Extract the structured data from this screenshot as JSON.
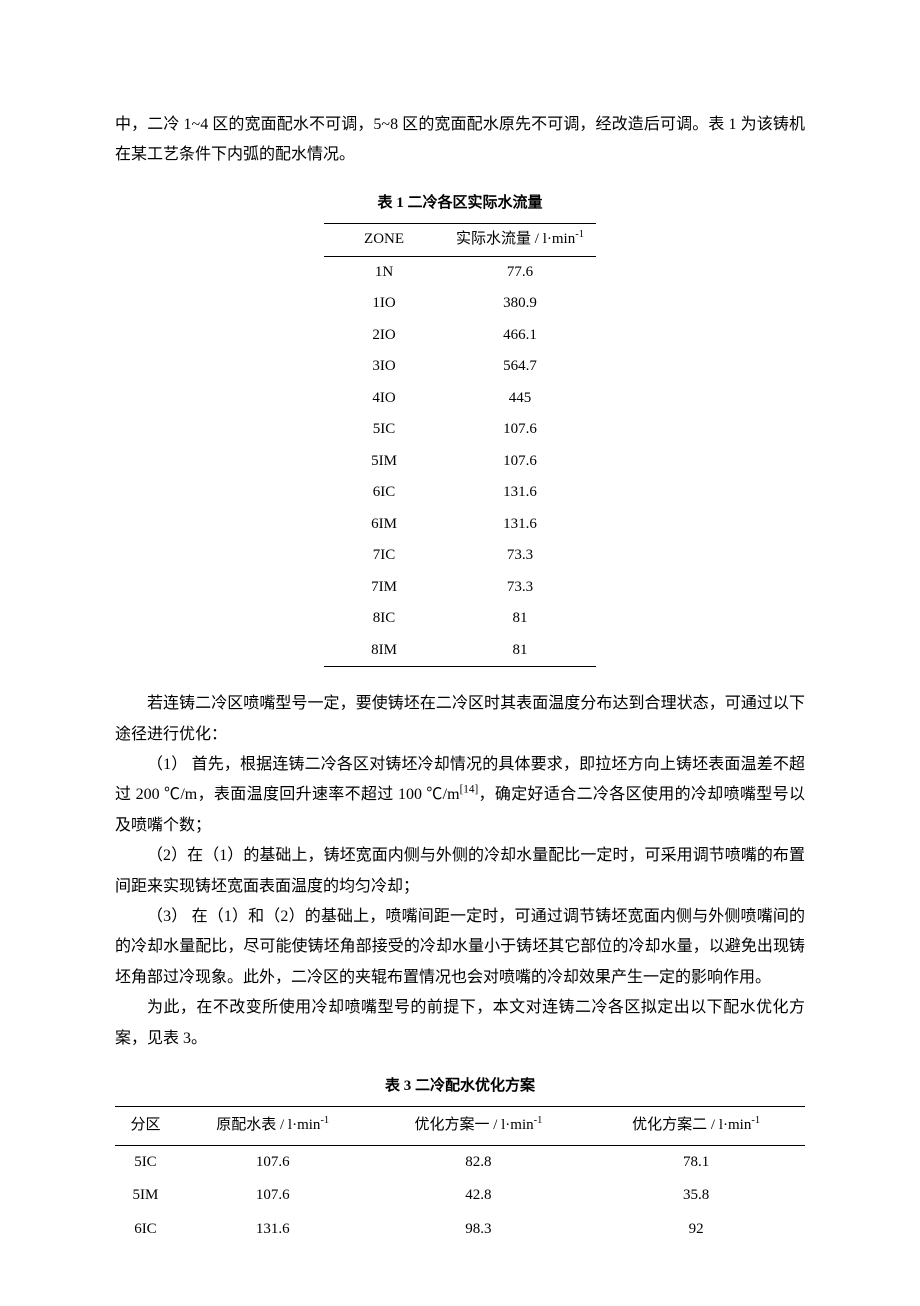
{
  "intro_paragraph": "中，二冷 1~4 区的宽面配水不可调，5~8 区的宽面配水原先不可调，经改造后可调。表 1 为该铸机在某工艺条件下内弧的配水情况。",
  "table1": {
    "caption": "表 1  二冷各区实际水流量",
    "columns": [
      "ZONE",
      "实际水流量 / l·min"
    ],
    "unit_sup": "-1",
    "rows": [
      [
        "1N",
        "77.6"
      ],
      [
        "1IO",
        "380.9"
      ],
      [
        "2IO",
        "466.1"
      ],
      [
        "3IO",
        "564.7"
      ],
      [
        "4IO",
        "445"
      ],
      [
        "5IC",
        "107.6"
      ],
      [
        "5IM",
        "107.6"
      ],
      [
        "6IC",
        "131.6"
      ],
      [
        "6IM",
        "131.6"
      ],
      [
        "7IC",
        "73.3"
      ],
      [
        "7IM",
        "73.3"
      ],
      [
        "8IC",
        "81"
      ],
      [
        "8IM",
        "81"
      ]
    ]
  },
  "body_paragraphs": {
    "p1": "若连铸二冷区喷嘴型号一定，要使铸坯在二冷区时其表面温度分布达到合理状态，可通过以下途径进行优化：",
    "p2_prefix": "（1） 首先，根据连铸二冷各区对铸坯冷却情况的具体要求，即拉坯方向上铸坯表面温差不超过 200 ℃/m，表面温度回升速率不超过 100 ℃/m",
    "p2_cite": "[14]",
    "p2_suffix": "，确定好适合二冷各区使用的冷却喷嘴型号以及喷嘴个数；",
    "p3": "（2）在（1）的基础上，铸坯宽面内侧与外侧的冷却水量配比一定时，可采用调节喷嘴的布置间距来实现铸坯宽面表面温度的均匀冷却；",
    "p4": "（3） 在（1）和（2）的基础上，喷嘴间距一定时，可通过调节铸坯宽面内侧与外侧喷嘴间的的冷却水量配比，尽可能使铸坯角部接受的冷却水量小于铸坯其它部位的冷却水量，以避免出现铸坯角部过冷现象。此外，二冷区的夹辊布置情况也会对喷嘴的冷却效果产生一定的影响作用。",
    "p5": "为此，在不改变所使用冷却喷嘴型号的前提下，本文对连铸二冷各区拟定出以下配水优化方案，见表 3。"
  },
  "table3": {
    "caption": "表 3  二冷配水优化方案",
    "columns": [
      "分区",
      "原配水表 / l·min",
      "优化方案一 / l·min",
      "优化方案二 / l·min"
    ],
    "unit_sup": "-1",
    "rows": [
      [
        "5IC",
        "107.6",
        "82.8",
        "78.1"
      ],
      [
        "5IM",
        "107.6",
        "42.8",
        "35.8"
      ],
      [
        "6IC",
        "131.6",
        "98.3",
        "92"
      ]
    ]
  },
  "style": {
    "text_color": "#000000",
    "bg_color": "#ffffff",
    "rule_color": "#000000",
    "body_fontsize": 16,
    "caption_fontsize": 15
  }
}
